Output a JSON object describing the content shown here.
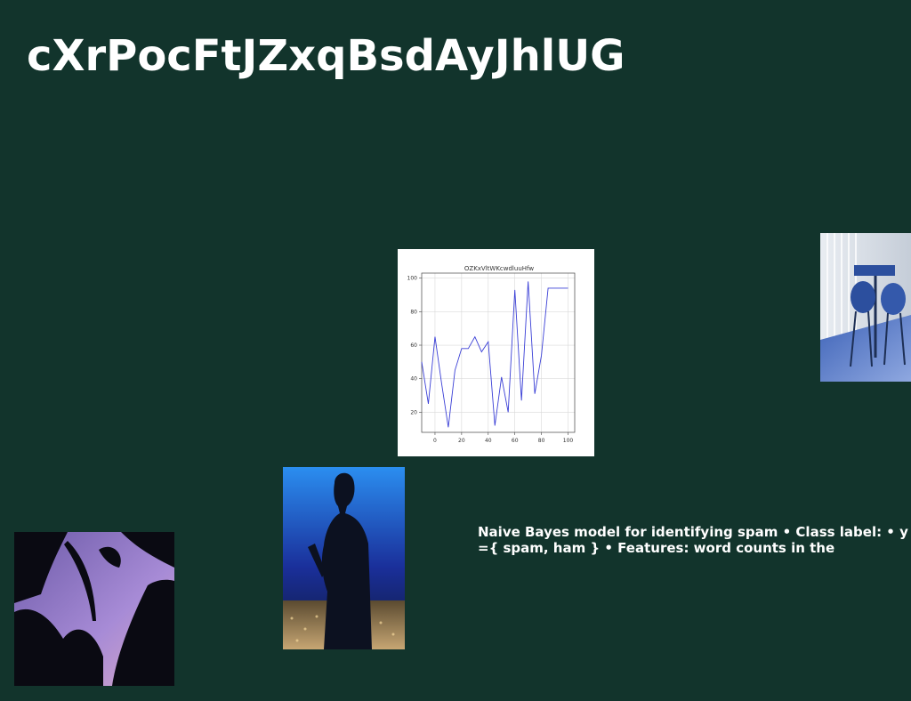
{
  "page": {
    "title": "cXrPocFtJZxqBsdAyJhlUG",
    "background": "#12342c"
  },
  "caption": {
    "text": "Naive Bayes model for identifying spam • Class label: • y ={ spam, ham } • Features: word counts in the"
  },
  "images": {
    "chairs": "blue-chairs-photo",
    "person": "person-with-phone-photo",
    "palms": "palm-silhouette-photo"
  },
  "chart_data": {
    "type": "line",
    "title": "OZKxVltWKcwdluuHfw",
    "xlabel": "",
    "ylabel": "",
    "xlim": [
      -10,
      105
    ],
    "ylim": [
      8,
      103
    ],
    "xticks": [
      0,
      20,
      40,
      60,
      80,
      100
    ],
    "yticks": [
      20,
      40,
      60,
      80,
      100
    ],
    "grid": true,
    "line_color": "#3a3fd6",
    "series": [
      {
        "x": [
          -10,
          -5,
          0,
          5,
          10,
          15,
          20,
          25,
          30,
          35,
          40,
          45,
          50,
          55,
          60,
          65,
          70,
          75,
          80,
          85,
          90,
          95,
          100
        ],
        "values": [
          50,
          25,
          65,
          37,
          11,
          45,
          58,
          58,
          65,
          56,
          62,
          12,
          41,
          20,
          93,
          27,
          98,
          31,
          54,
          94,
          94,
          94,
          94
        ]
      }
    ]
  }
}
